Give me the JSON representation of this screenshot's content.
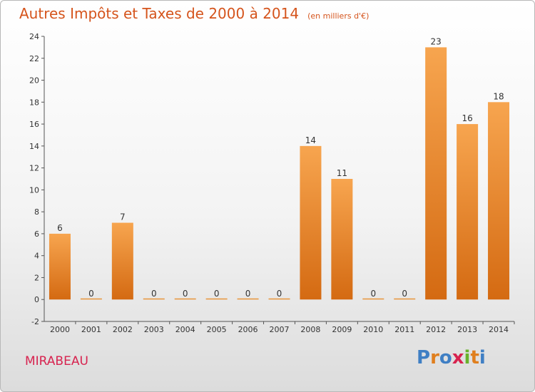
{
  "header": {
    "title": "Autres Impôts et Taxes de 2000 à 2014",
    "unit": "(en milliers d'€)"
  },
  "footer": {
    "commune": "MIRABEAU",
    "logo": "Proxiti",
    "logo_colors": [
      "#3f7fc4",
      "#e07f1e",
      "#3f7fc4",
      "#d7234f",
      "#68b22c",
      "#e07f1e",
      "#3f7fc4"
    ]
  },
  "chart_data": {
    "type": "bar",
    "title": "Autres Impôts et Taxes de 2000 à 2014",
    "xlabel": "",
    "ylabel": "",
    "categories": [
      "2000",
      "2001",
      "2002",
      "2003",
      "2004",
      "2005",
      "2006",
      "2007",
      "2008",
      "2009",
      "2010",
      "2011",
      "2012",
      "2013",
      "2014"
    ],
    "values": [
      6,
      0,
      7,
      0,
      0,
      0,
      0,
      0,
      14,
      11,
      0,
      0,
      23,
      16,
      18
    ],
    "data_labels": [
      "6",
      "0",
      "7",
      "0",
      "0",
      "0",
      "0",
      "0",
      "14",
      "11",
      "0",
      "0",
      "23",
      "16",
      "18"
    ],
    "ylim": [
      -2,
      24
    ],
    "yticks": [
      -2,
      0,
      2,
      4,
      6,
      8,
      10,
      12,
      14,
      16,
      18,
      20,
      22,
      24
    ],
    "grid": false,
    "bar_color_top": "#f7a54f",
    "bar_color_bottom": "#d46a12"
  }
}
